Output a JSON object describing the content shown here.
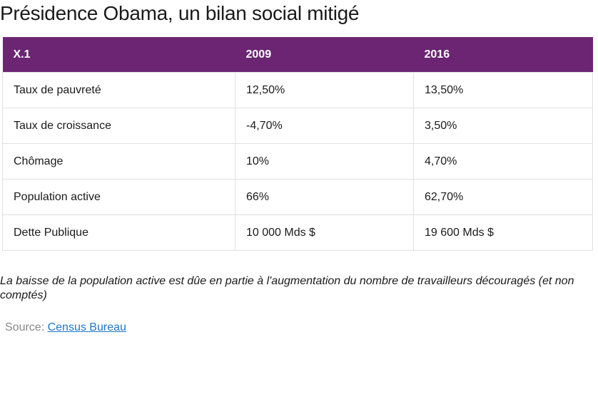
{
  "page": {
    "title": "Présidence Obama, un bilan social mitigé"
  },
  "table": {
    "headers": [
      "X.1",
      "2009",
      "2016"
    ],
    "rows": [
      [
        "Taux de pauvreté",
        "12,50%",
        "13,50%"
      ],
      [
        "Taux de croissance",
        "-4,70%",
        "3,50%"
      ],
      [
        "Chômage",
        "10%",
        "4,70%"
      ],
      [
        "Population active",
        "66%",
        "62,70%"
      ],
      [
        "Dette Publique",
        "10 000 Mds $",
        "19 600 Mds $"
      ]
    ]
  },
  "note": "La baisse de la population active est dûe en partie à l'augmentation du nombre de travailleurs découragés (et non comptés)",
  "source": {
    "label": "Source: ",
    "link_text": "Census Bureau"
  },
  "colors": {
    "header_bg": "#6b2573",
    "header_text": "#ffffff",
    "link": "#1f77c8",
    "source_label": "#888888"
  }
}
